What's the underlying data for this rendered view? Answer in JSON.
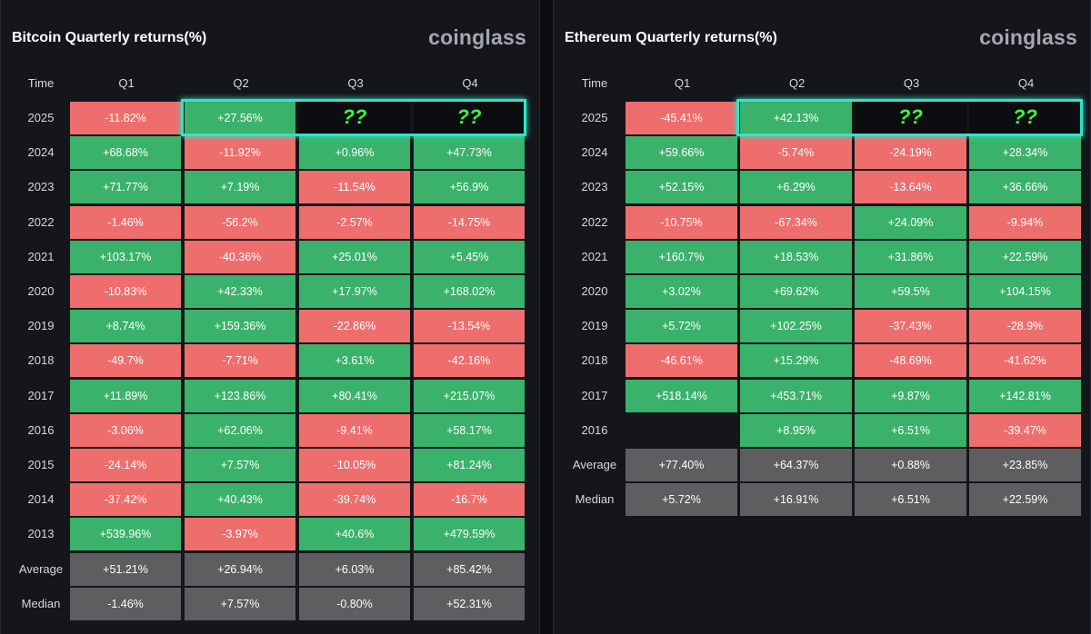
{
  "charts": [
    {
      "id": "btc",
      "title": "Bitcoin Quarterly returns(%)",
      "brand": "coinglass",
      "time_label": "Time",
      "quarters": [
        "Q1",
        "Q2",
        "Q3",
        "Q4"
      ],
      "rows": [
        {
          "label": "2025",
          "values": [
            "-11.82%",
            "+27.56%",
            "??",
            "??"
          ]
        },
        {
          "label": "2024",
          "values": [
            "+68.68%",
            "-11.92%",
            "+0.96%",
            "+47.73%"
          ]
        },
        {
          "label": "2023",
          "values": [
            "+71.77%",
            "+7.19%",
            "-11.54%",
            "+56.9%"
          ]
        },
        {
          "label": "2022",
          "values": [
            "-1.46%",
            "-56.2%",
            "-2.57%",
            "-14.75%"
          ]
        },
        {
          "label": "2021",
          "values": [
            "+103.17%",
            "-40.36%",
            "+25.01%",
            "+5.45%"
          ]
        },
        {
          "label": "2020",
          "values": [
            "-10.83%",
            "+42.33%",
            "+17.97%",
            "+168.02%"
          ]
        },
        {
          "label": "2019",
          "values": [
            "+8.74%",
            "+159.36%",
            "-22.86%",
            "-13.54%"
          ]
        },
        {
          "label": "2018",
          "values": [
            "-49.7%",
            "-7.71%",
            "+3.61%",
            "-42.16%"
          ]
        },
        {
          "label": "2017",
          "values": [
            "+11.89%",
            "+123.86%",
            "+80.41%",
            "+215.07%"
          ]
        },
        {
          "label": "2016",
          "values": [
            "-3.06%",
            "+62.06%",
            "-9.41%",
            "+58.17%"
          ]
        },
        {
          "label": "2015",
          "values": [
            "-24.14%",
            "+7.57%",
            "-10.05%",
            "+81.24%"
          ]
        },
        {
          "label": "2014",
          "values": [
            "-37.42%",
            "+40.43%",
            "-39.74%",
            "-16.7%"
          ]
        },
        {
          "label": "2013",
          "values": [
            "+539.96%",
            "-3.97%",
            "+40.6%",
            "+479.59%"
          ]
        }
      ],
      "stats": [
        {
          "label": "Average",
          "values": [
            "+51.21%",
            "+26.94%",
            "+6.03%",
            "+85.42%"
          ]
        },
        {
          "label": "Median",
          "values": [
            "-1.46%",
            "+7.57%",
            "-0.80%",
            "+52.31%"
          ]
        }
      ],
      "highlight": {
        "row": "2025",
        "quarters": [
          "Q2",
          "Q3",
          "Q4"
        ]
      }
    },
    {
      "id": "eth",
      "title": "Ethereum Quarterly returns(%)",
      "brand": "coinglass",
      "time_label": "Time",
      "quarters": [
        "Q1",
        "Q2",
        "Q3",
        "Q4"
      ],
      "rows": [
        {
          "label": "2025",
          "values": [
            "-45.41%",
            "+42.13%",
            "??",
            "??"
          ]
        },
        {
          "label": "2024",
          "values": [
            "+59.66%",
            "-5.74%",
            "-24.19%",
            "+28.34%"
          ]
        },
        {
          "label": "2023",
          "values": [
            "+52.15%",
            "+6.29%",
            "-13.64%",
            "+36.66%"
          ]
        },
        {
          "label": "2022",
          "values": [
            "-10.75%",
            "-67.34%",
            "+24.09%",
            "-9.94%"
          ]
        },
        {
          "label": "2021",
          "values": [
            "+160.7%",
            "+18.53%",
            "+31.86%",
            "+22.59%"
          ]
        },
        {
          "label": "2020",
          "values": [
            "+3.02%",
            "+69.62%",
            "+59.5%",
            "+104.15%"
          ]
        },
        {
          "label": "2019",
          "values": [
            "+5.72%",
            "+102.25%",
            "-37.43%",
            "-28.9%"
          ]
        },
        {
          "label": "2018",
          "values": [
            "-46.61%",
            "+15.29%",
            "-48.69%",
            "-41.62%"
          ]
        },
        {
          "label": "2017",
          "values": [
            "+518.14%",
            "+453.71%",
            "+9.87%",
            "+142.81%"
          ]
        },
        {
          "label": "2016",
          "values": [
            "",
            "+8.95%",
            "+6.51%",
            "-39.47%"
          ]
        }
      ],
      "stats": [
        {
          "label": "Average",
          "values": [
            "+77.40%",
            "+64.37%",
            "+0.88%",
            "+23.85%"
          ]
        },
        {
          "label": "Median",
          "values": [
            "+5.72%",
            "+16.91%",
            "+6.51%",
            "+22.59%"
          ]
        }
      ],
      "highlight": {
        "row": "2025",
        "quarters": [
          "Q2",
          "Q3",
          "Q4"
        ]
      }
    }
  ],
  "colors": {
    "positive": "#3bb26b",
    "negative": "#ee6e6e",
    "stat": "#5e5e60",
    "unknown_text": "#39ff3a",
    "highlight": "#2de6c8"
  },
  "chart_data": [
    {
      "type": "table",
      "title": "Bitcoin Quarterly returns(%)",
      "columns": [
        "Q1",
        "Q2",
        "Q3",
        "Q4"
      ],
      "rows": [
        "2025",
        "2024",
        "2023",
        "2022",
        "2021",
        "2020",
        "2019",
        "2018",
        "2017",
        "2016",
        "2015",
        "2014",
        "2013",
        "Average",
        "Median"
      ],
      "unit": "%"
    },
    {
      "type": "table",
      "title": "Ethereum Quarterly returns(%)",
      "columns": [
        "Q1",
        "Q2",
        "Q3",
        "Q4"
      ],
      "rows": [
        "2025",
        "2024",
        "2023",
        "2022",
        "2021",
        "2020",
        "2019",
        "2018",
        "2017",
        "2016",
        "Average",
        "Median"
      ],
      "unit": "%"
    }
  ]
}
